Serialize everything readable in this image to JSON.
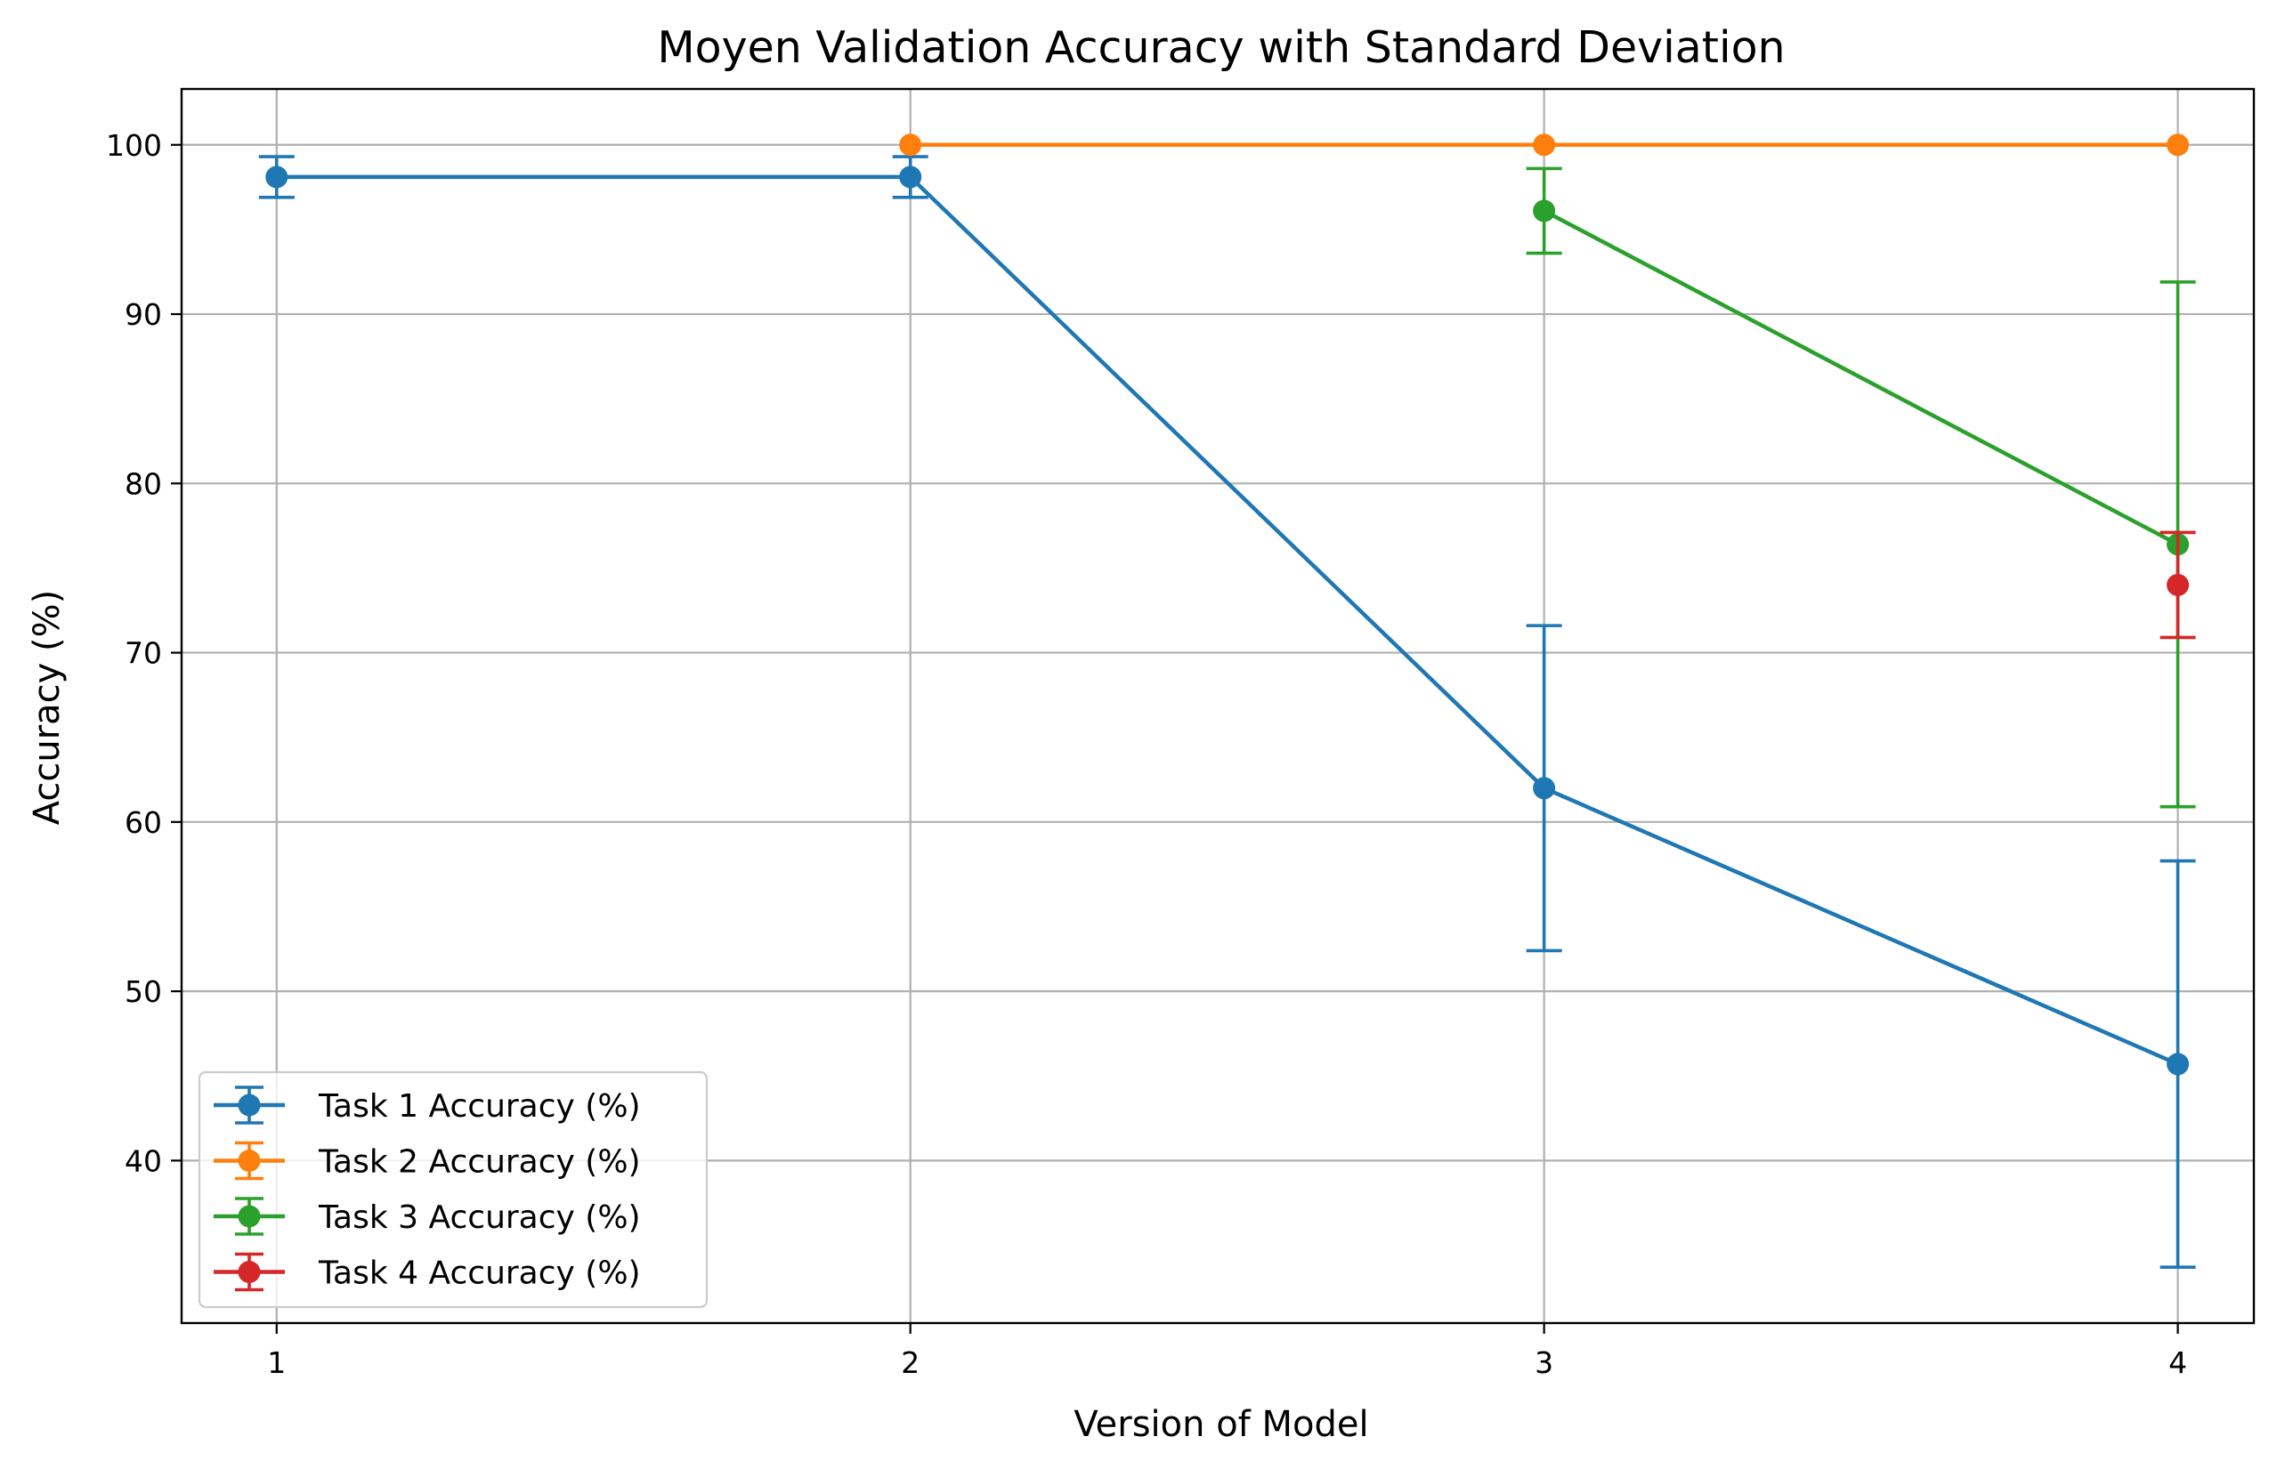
{
  "chart_data": {
    "type": "line",
    "title": "Moyen Validation Accuracy with Standard Deviation",
    "xlabel": "Version of Model",
    "ylabel": "Accuracy (%)",
    "x_ticks": [
      1,
      2,
      3,
      4
    ],
    "y_ticks": [
      40,
      50,
      60,
      70,
      80,
      90,
      100
    ],
    "xlim": [
      0.85,
      4.12
    ],
    "ylim": [
      30.4,
      103.3
    ],
    "grid": true,
    "legend_position": "lower-left",
    "error_bars": "standard deviation",
    "series": [
      {
        "name": "Task 1 Accuracy (%)",
        "color": "#1f77b4",
        "x": [
          1,
          2,
          3,
          4
        ],
        "values": [
          98.1,
          98.1,
          62.0,
          45.7
        ],
        "std": [
          1.2,
          1.2,
          9.6,
          12.0
        ]
      },
      {
        "name": "Task 2 Accuracy (%)",
        "color": "#ff7f0e",
        "x": [
          2,
          3,
          4
        ],
        "values": [
          100.0,
          100.0,
          100.0
        ],
        "std": [
          0,
          0,
          0
        ]
      },
      {
        "name": "Task 3 Accuracy (%)",
        "color": "#2ca02c",
        "x": [
          3,
          4
        ],
        "values": [
          96.1,
          76.4
        ],
        "std": [
          2.5,
          15.5
        ]
      },
      {
        "name": "Task 4 Accuracy (%)",
        "color": "#d62728",
        "x": [
          4
        ],
        "values": [
          74.0
        ],
        "std": [
          3.1
        ]
      }
    ]
  }
}
